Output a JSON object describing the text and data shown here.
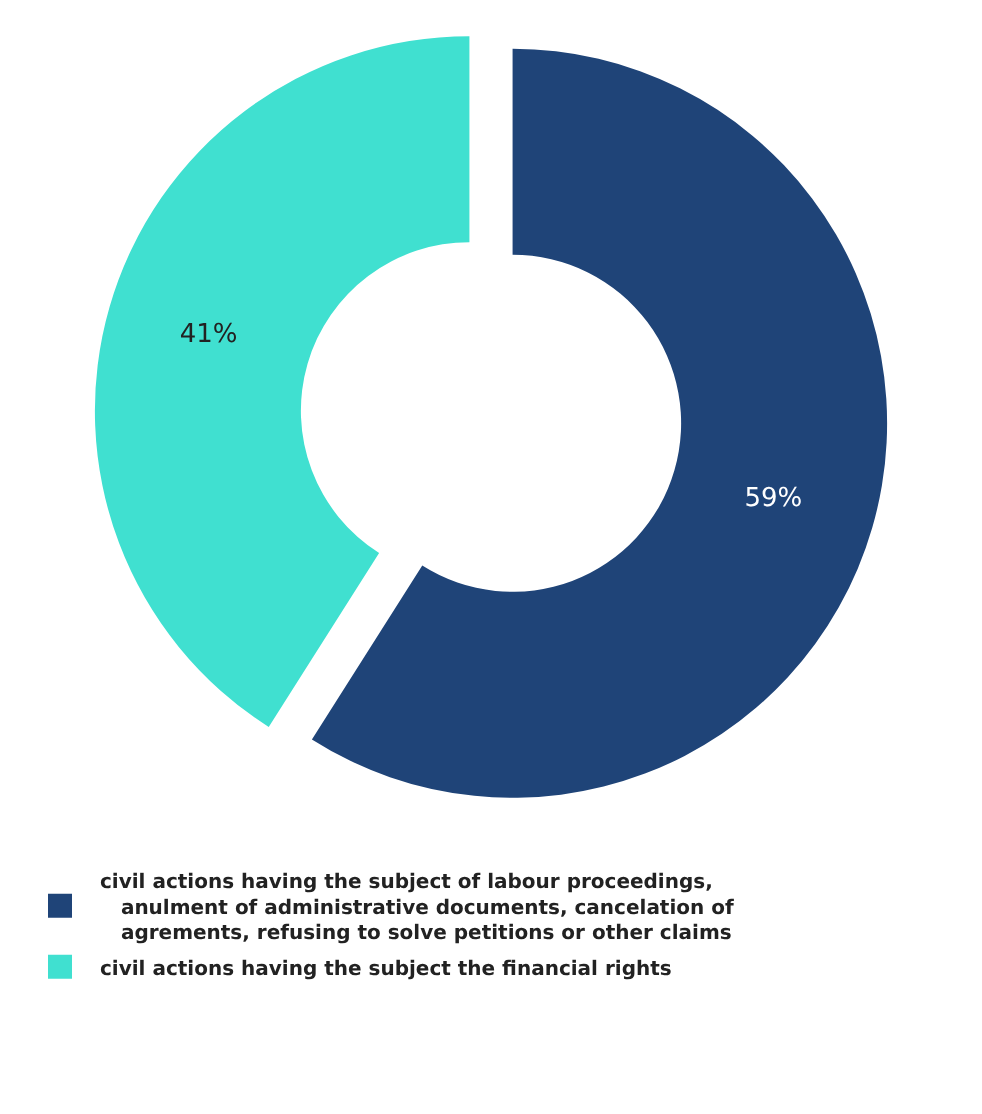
{
  "chart_data": {
    "type": "donut",
    "categories": [
      "civil actions having the subject of labour proceedings, anulment of administrative documents, cancelation of agrements, refusing to solve petitions or other claims",
      "civil actions having the subject the financial rights"
    ],
    "values": [
      59,
      41
    ],
    "colors": [
      "#1f4478",
      "#40e0d0"
    ],
    "value_labels": [
      "59%",
      "41%"
    ],
    "legend": "bottom"
  }
}
